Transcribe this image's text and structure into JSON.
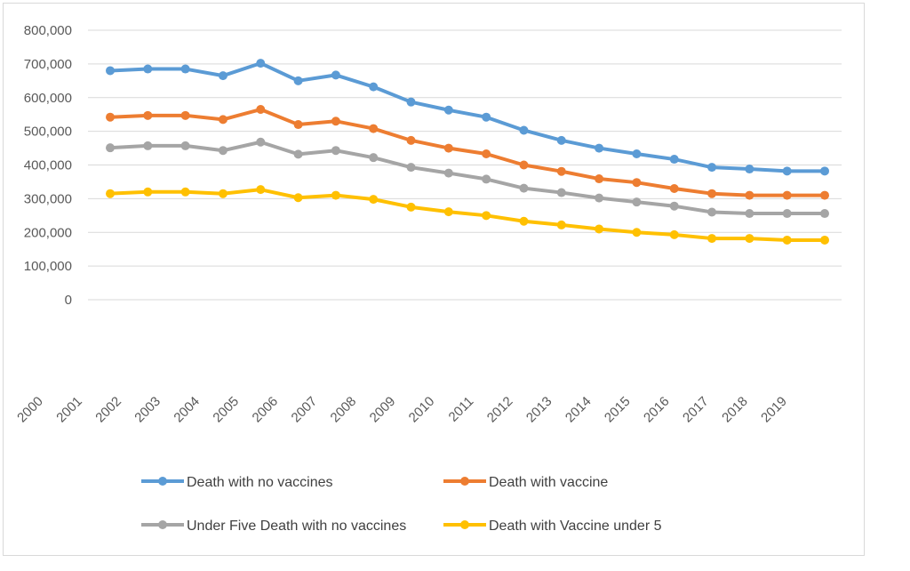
{
  "chart_data": {
    "type": "line",
    "title": "",
    "xlabel": "",
    "ylabel": "",
    "ylim": [
      0,
      800000
    ],
    "yticks": [
      0,
      100000,
      200000,
      300000,
      400000,
      500000,
      600000,
      700000,
      800000
    ],
    "ytick_labels": [
      "0",
      "100,000",
      "200,000",
      "300,000",
      "400,000",
      "500,000",
      "600,000",
      "700,000",
      "800,000"
    ],
    "categories": [
      "2000",
      "2001",
      "2002",
      "2003",
      "2004",
      "2005",
      "2006",
      "2007",
      "2008",
      "2009",
      "2010",
      "2011",
      "2012",
      "2013",
      "2014",
      "2015",
      "2016",
      "2017",
      "2018",
      "2019"
    ],
    "grid": true,
    "legend_position": "bottom",
    "series": [
      {
        "name": "Death with  no vaccines",
        "color": "#5B9BD5",
        "values": [
          680000,
          685000,
          685000,
          665000,
          702000,
          650000,
          667000,
          632000,
          587000,
          563000,
          542000,
          503000,
          473000,
          450000,
          433000,
          417000,
          393000,
          388000,
          382000,
          382000
        ]
      },
      {
        "name": "Death with vaccine",
        "color": "#ED7D31",
        "values": [
          542000,
          547000,
          547000,
          535000,
          565000,
          520000,
          530000,
          508000,
          473000,
          450000,
          433000,
          400000,
          381000,
          359000,
          348000,
          330000,
          315000,
          310000,
          310000,
          310000
        ]
      },
      {
        "name": "Under Five Death with no vaccines",
        "color": "#A5A5A5",
        "values": [
          451000,
          457000,
          457000,
          443000,
          468000,
          432000,
          443000,
          422000,
          393000,
          376000,
          358000,
          331000,
          318000,
          302000,
          290000,
          278000,
          260000,
          256000,
          256000,
          256000
        ]
      },
      {
        "name": "Death with Vaccine under 5",
        "color": "#FFC000",
        "values": [
          315000,
          320000,
          320000,
          315000,
          327000,
          303000,
          310000,
          298000,
          275000,
          261000,
          250000,
          233000,
          222000,
          210000,
          200000,
          193000,
          182000,
          182000,
          177000,
          177000
        ]
      }
    ]
  }
}
